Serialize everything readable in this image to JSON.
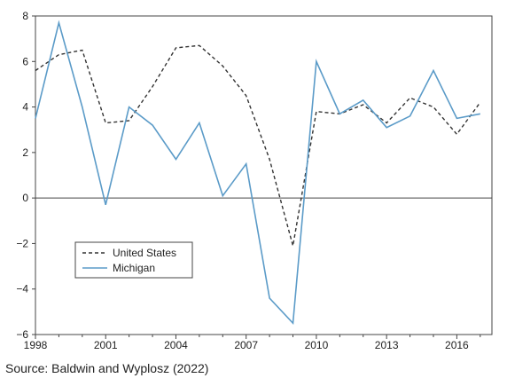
{
  "source": "Source: Baldwin and Wyplosz (2022)",
  "chart_data": {
    "type": "line",
    "title": "",
    "xlabel": "",
    "ylabel": "",
    "xlim": [
      1998,
      2017.5
    ],
    "ylim": [
      -6,
      8
    ],
    "x_ticks": [
      1998,
      2001,
      2004,
      2007,
      2010,
      2013,
      2016
    ],
    "y_ticks": [
      8,
      6,
      4,
      2,
      0,
      -2,
      -4,
      -6
    ],
    "grid": false,
    "legend_position": "lower-left",
    "x": [
      1998,
      1999,
      2000,
      2001,
      2002,
      2003,
      2004,
      2005,
      2006,
      2007,
      2008,
      2009,
      2010,
      2011,
      2012,
      2013,
      2014,
      2015,
      2016,
      2017
    ],
    "series": [
      {
        "name": "United States",
        "color": "#333333",
        "style": "dashed",
        "values": [
          5.6,
          6.3,
          6.5,
          3.3,
          3.4,
          4.9,
          6.6,
          6.7,
          5.8,
          4.5,
          1.7,
          -2.1,
          3.8,
          3.7,
          4.1,
          3.3,
          4.4,
          4.0,
          2.8,
          4.2
        ]
      },
      {
        "name": "Michigan",
        "color": "#5b9bc8",
        "style": "solid",
        "values": [
          3.5,
          7.7,
          4.0,
          -0.3,
          4.0,
          3.2,
          1.7,
          3.3,
          0.1,
          1.5,
          -4.4,
          -5.5,
          6.0,
          3.7,
          4.3,
          3.1,
          3.6,
          5.6,
          3.5,
          3.7
        ]
      }
    ]
  }
}
